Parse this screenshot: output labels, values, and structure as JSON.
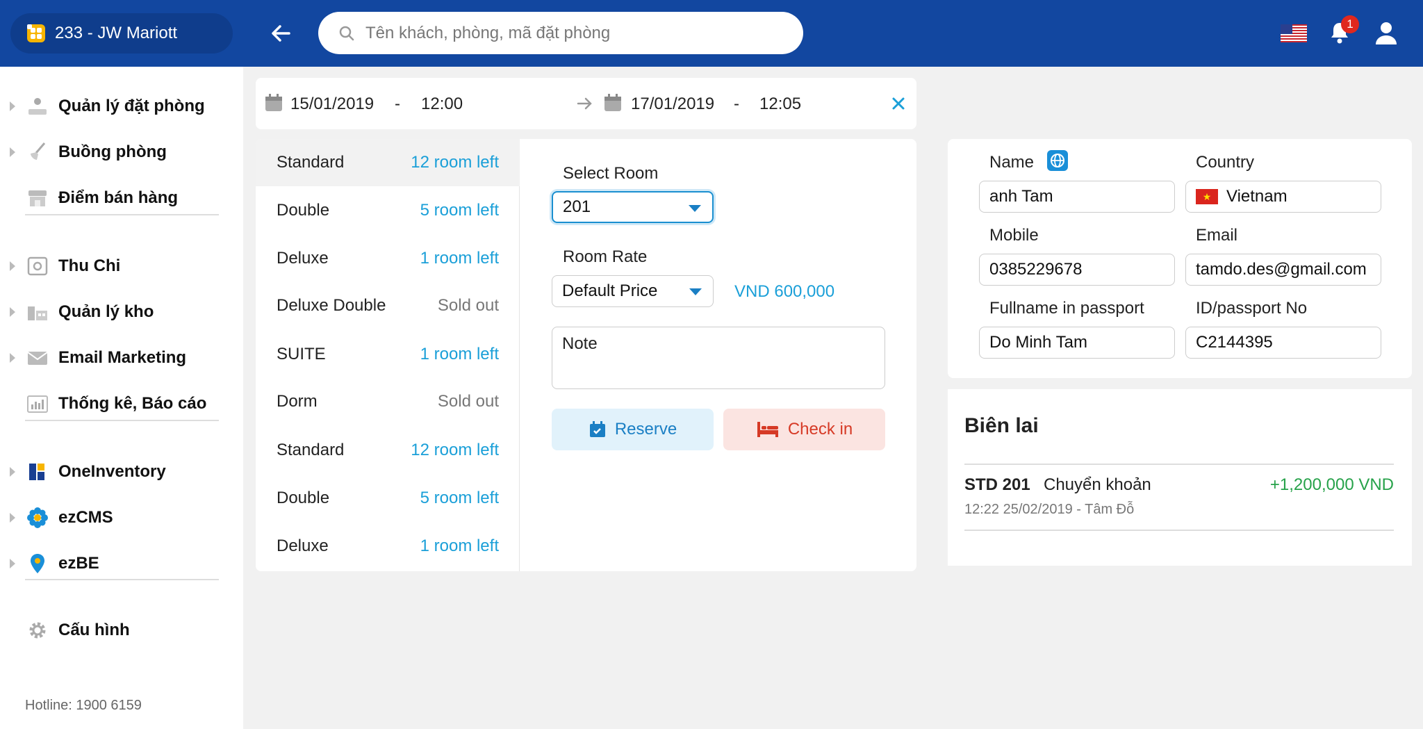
{
  "header": {
    "hotel_name": "233 - JW Mariott",
    "search_placeholder": "Tên khách, phòng, mã đặt phòng",
    "notification_count": "1"
  },
  "sidebar": {
    "items": [
      {
        "label": "Quản lý đặt phòng",
        "icon": "reception-icon"
      },
      {
        "label": "Buồng phòng",
        "icon": "broom-icon"
      },
      {
        "label": "Điểm bán hàng",
        "icon": "store-icon"
      },
      {
        "label": "Thu Chi",
        "icon": "safe-icon"
      },
      {
        "label": "Quản lý kho",
        "icon": "warehouse-icon"
      },
      {
        "label": "Email Marketing",
        "icon": "mail-icon"
      },
      {
        "label": "Thống kê, Báo cáo",
        "icon": "bar-chart-icon"
      },
      {
        "label": "OneInventory",
        "icon": "oneinventory-icon"
      },
      {
        "label": "ezCMS",
        "icon": "ezcms-icon"
      },
      {
        "label": "ezBE",
        "icon": "ezbe-icon"
      },
      {
        "label": "Cấu hình",
        "icon": "gear-icon"
      }
    ],
    "hotline": "Hotline: 1900 6159"
  },
  "dates": {
    "from_date": "15/01/2019",
    "from_time": "12:00",
    "to_date": "17/01/2019",
    "to_time": "12:05",
    "separator": "-"
  },
  "rooms": [
    {
      "type": "Standard",
      "status": "12 room left"
    },
    {
      "type": "Double",
      "status": "5 room left"
    },
    {
      "type": "Deluxe",
      "status": "1 room left"
    },
    {
      "type": "Deluxe Double",
      "status": "Sold out"
    },
    {
      "type": "SUITE",
      "status": "1 room left"
    },
    {
      "type": "Dorm",
      "status": "Sold out"
    },
    {
      "type": "Standard",
      "status": "12 room left"
    },
    {
      "type": "Double",
      "status": "5 room left"
    },
    {
      "type": "Deluxe",
      "status": "1 room left"
    }
  ],
  "booking": {
    "select_room_label": "Select Room",
    "selected_room": "201",
    "room_rate_label": "Room Rate",
    "rate_option": "Default Price",
    "rate_price": "VND 600,000",
    "note_placeholder": "Note",
    "reserve_label": "Reserve",
    "checkin_label": "Check in"
  },
  "guest": {
    "name_label": "Name",
    "name_value": "anh Tam",
    "country_label": "Country",
    "country_value": "Vietnam",
    "mobile_label": "Mobile",
    "mobile_value": "0385229678",
    "email_label": "Email",
    "email_value": "tamdo.des@gmail.com",
    "fullname_label": "Fullname in passport",
    "fullname_value": "Do Minh Tam",
    "id_label": "ID/passport No",
    "id_value": "C2144395"
  },
  "receipt": {
    "title": "Biên lai",
    "code": "STD 201",
    "method": "Chuyển khoản",
    "amount": "+1,200,000 VND",
    "meta": "12:22 25/02/2019 - Tâm Đỗ"
  },
  "colors": {
    "header_bg": "#1247a0",
    "accent": "#1a9fd8",
    "success": "#27a24a",
    "danger": "#d63a26"
  }
}
